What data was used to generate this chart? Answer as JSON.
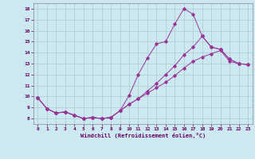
{
  "xlabel": "Windchill (Refroidissement éolien,°C)",
  "background_color": "#cce8f0",
  "grid_color": "#aacccc",
  "line_color": "#993399",
  "xlim": [
    -0.5,
    23.5
  ],
  "ylim": [
    7.5,
    18.5
  ],
  "xticks": [
    0,
    1,
    2,
    3,
    4,
    5,
    6,
    7,
    8,
    9,
    10,
    11,
    12,
    13,
    14,
    15,
    16,
    17,
    18,
    19,
    20,
    21,
    22,
    23
  ],
  "yticks": [
    8,
    9,
    10,
    11,
    12,
    13,
    14,
    15,
    16,
    17,
    18
  ],
  "line1_x": [
    0,
    1,
    2,
    3,
    4,
    5,
    6,
    7,
    8,
    9,
    10,
    11,
    12,
    13,
    14,
    15,
    16,
    17,
    18,
    19,
    20,
    21,
    22
  ],
  "line1_y": [
    9.9,
    8.9,
    8.5,
    8.6,
    8.3,
    8.0,
    8.1,
    8.0,
    8.1,
    8.7,
    10.1,
    12.0,
    13.5,
    14.8,
    15.0,
    16.6,
    18.0,
    17.5,
    15.5,
    14.5,
    14.3,
    13.4,
    13.0
  ],
  "line2_x": [
    0,
    1,
    2,
    3,
    4,
    5,
    6,
    7,
    8,
    9,
    10,
    11,
    12,
    13,
    14,
    15,
    16,
    17,
    18,
    19,
    20,
    21,
    22,
    23
  ],
  "line2_y": [
    9.9,
    8.9,
    8.5,
    8.6,
    8.3,
    8.0,
    8.1,
    8.0,
    8.1,
    8.7,
    9.3,
    9.8,
    10.3,
    10.8,
    11.3,
    11.9,
    12.6,
    13.2,
    13.6,
    13.9,
    14.2,
    13.2,
    13.0,
    12.9
  ],
  "line3_x": [
    0,
    1,
    2,
    3,
    4,
    5,
    6,
    7,
    8,
    9,
    10,
    11,
    12,
    13,
    14,
    15,
    16,
    17,
    18,
    19,
    20,
    21,
    22,
    23
  ],
  "line3_y": [
    9.9,
    8.9,
    8.5,
    8.6,
    8.3,
    8.0,
    8.1,
    8.0,
    8.1,
    8.7,
    9.3,
    9.8,
    10.5,
    11.2,
    12.0,
    12.8,
    13.8,
    14.5,
    15.5,
    14.5,
    14.3,
    13.4,
    13.0,
    12.9
  ]
}
